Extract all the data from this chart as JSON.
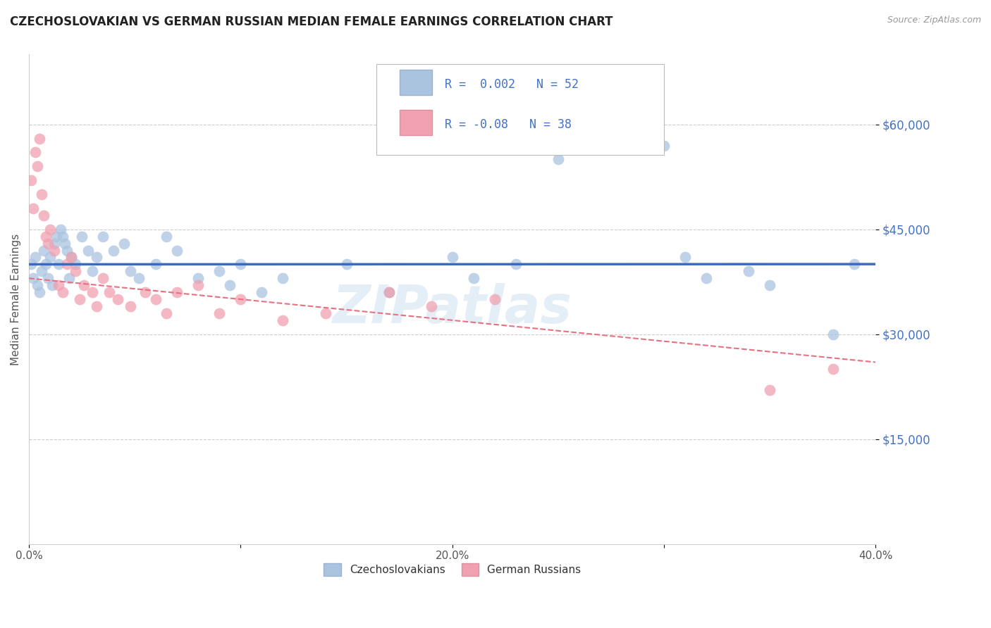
{
  "title": "CZECHOSLOVAKIAN VS GERMAN RUSSIAN MEDIAN FEMALE EARNINGS CORRELATION CHART",
  "source": "Source: ZipAtlas.com",
  "ylabel": "Median Female Earnings",
  "xlim": [
    0.0,
    0.4
  ],
  "ylim": [
    0,
    70000
  ],
  "yticks": [
    15000,
    30000,
    45000,
    60000
  ],
  "ytick_labels": [
    "$15,000",
    "$30,000",
    "$45,000",
    "$60,000"
  ],
  "xticks": [
    0.0,
    0.1,
    0.2,
    0.3,
    0.4
  ],
  "xtick_labels": [
    "0.0%",
    "",
    "20.0%",
    "",
    "40.0%"
  ],
  "background_color": "#ffffff",
  "grid_color": "#cccccc",
  "blue_scatter_color": "#aac4e0",
  "pink_scatter_color": "#f0a0b0",
  "blue_line_color": "#3a6bbf",
  "pink_line_color": "#e87080",
  "blue_R": 0.002,
  "blue_N": 52,
  "pink_R": -0.08,
  "pink_N": 38,
  "legend_label_1": "Czechoslovakians",
  "legend_label_2": "German Russians",
  "watermark": "ZIPatlas",
  "blue_x": [
    0.001,
    0.002,
    0.003,
    0.004,
    0.005,
    0.006,
    0.007,
    0.008,
    0.009,
    0.01,
    0.011,
    0.012,
    0.013,
    0.014,
    0.015,
    0.016,
    0.017,
    0.018,
    0.019,
    0.02,
    0.022,
    0.025,
    0.028,
    0.03,
    0.032,
    0.035,
    0.04,
    0.045,
    0.048,
    0.052,
    0.06,
    0.065,
    0.07,
    0.08,
    0.09,
    0.095,
    0.1,
    0.11,
    0.12,
    0.15,
    0.17,
    0.2,
    0.21,
    0.23,
    0.25,
    0.3,
    0.31,
    0.32,
    0.34,
    0.35,
    0.38,
    0.39
  ],
  "blue_y": [
    40000,
    38000,
    41000,
    37000,
    36000,
    39000,
    42000,
    40000,
    38000,
    41000,
    37000,
    43000,
    44000,
    40000,
    45000,
    44000,
    43000,
    42000,
    38000,
    41000,
    40000,
    44000,
    42000,
    39000,
    41000,
    44000,
    42000,
    43000,
    39000,
    38000,
    40000,
    44000,
    42000,
    38000,
    39000,
    37000,
    40000,
    36000,
    38000,
    40000,
    36000,
    41000,
    38000,
    40000,
    55000,
    57000,
    41000,
    38000,
    39000,
    37000,
    30000,
    40000
  ],
  "pink_x": [
    0.001,
    0.002,
    0.003,
    0.004,
    0.005,
    0.006,
    0.007,
    0.008,
    0.009,
    0.01,
    0.012,
    0.014,
    0.016,
    0.018,
    0.02,
    0.022,
    0.024,
    0.026,
    0.03,
    0.032,
    0.035,
    0.038,
    0.042,
    0.048,
    0.055,
    0.06,
    0.065,
    0.07,
    0.08,
    0.09,
    0.1,
    0.12,
    0.14,
    0.17,
    0.19,
    0.22,
    0.35,
    0.38
  ],
  "pink_y": [
    52000,
    48000,
    56000,
    54000,
    58000,
    50000,
    47000,
    44000,
    43000,
    45000,
    42000,
    37000,
    36000,
    40000,
    41000,
    39000,
    35000,
    37000,
    36000,
    34000,
    38000,
    36000,
    35000,
    34000,
    36000,
    35000,
    33000,
    36000,
    37000,
    33000,
    35000,
    32000,
    33000,
    36000,
    34000,
    35000,
    22000,
    25000
  ]
}
